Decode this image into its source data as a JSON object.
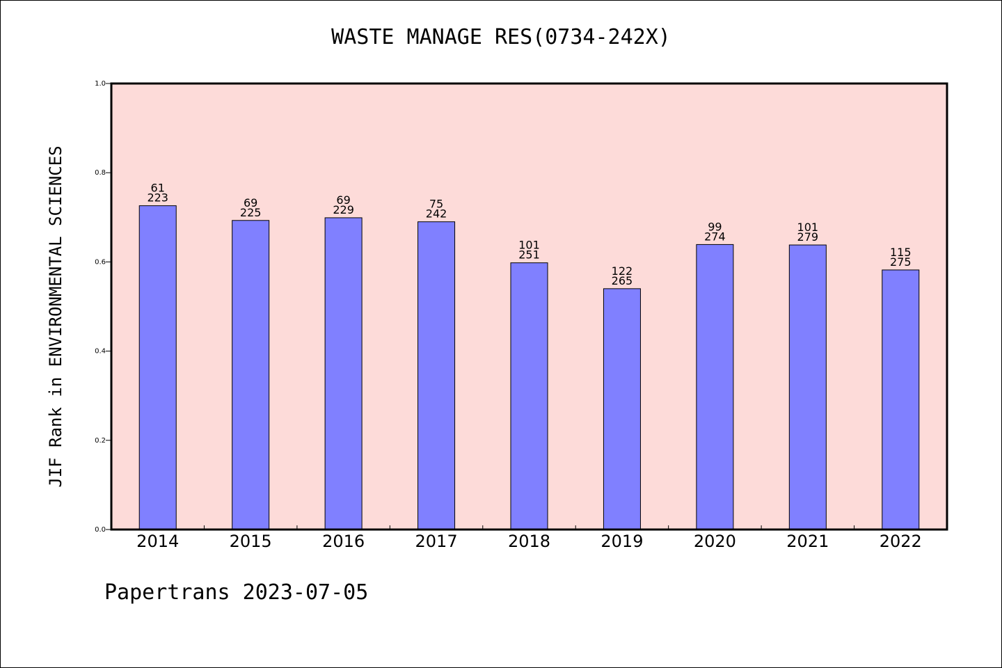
{
  "chart_data": {
    "type": "bar",
    "title": "WASTE MANAGE RES(0734-242X)",
    "xlabel": "",
    "ylabel": "JIF Rank in ENVIRONMENTAL SCIENCES",
    "ylim": [
      0.0,
      1.0
    ],
    "yticks": [
      "0.0",
      "0.2",
      "0.4",
      "0.6",
      "0.8",
      "1.0"
    ],
    "categories": [
      "2014",
      "2015",
      "2016",
      "2017",
      "2018",
      "2019",
      "2020",
      "2021",
      "2022"
    ],
    "values": [
      0.726,
      0.693,
      0.699,
      0.69,
      0.598,
      0.54,
      0.639,
      0.638,
      0.582
    ],
    "rank": [
      "61",
      "69",
      "69",
      "75",
      "101",
      "122",
      "99",
      "101",
      "115"
    ],
    "total": [
      "223",
      "225",
      "229",
      "242",
      "251",
      "265",
      "274",
      "279",
      "275"
    ],
    "grid": false,
    "colors": {
      "bar": "#8080ff",
      "plot_bg": "#fddbd9"
    }
  },
  "footer": "Papertrans 2023-07-05"
}
